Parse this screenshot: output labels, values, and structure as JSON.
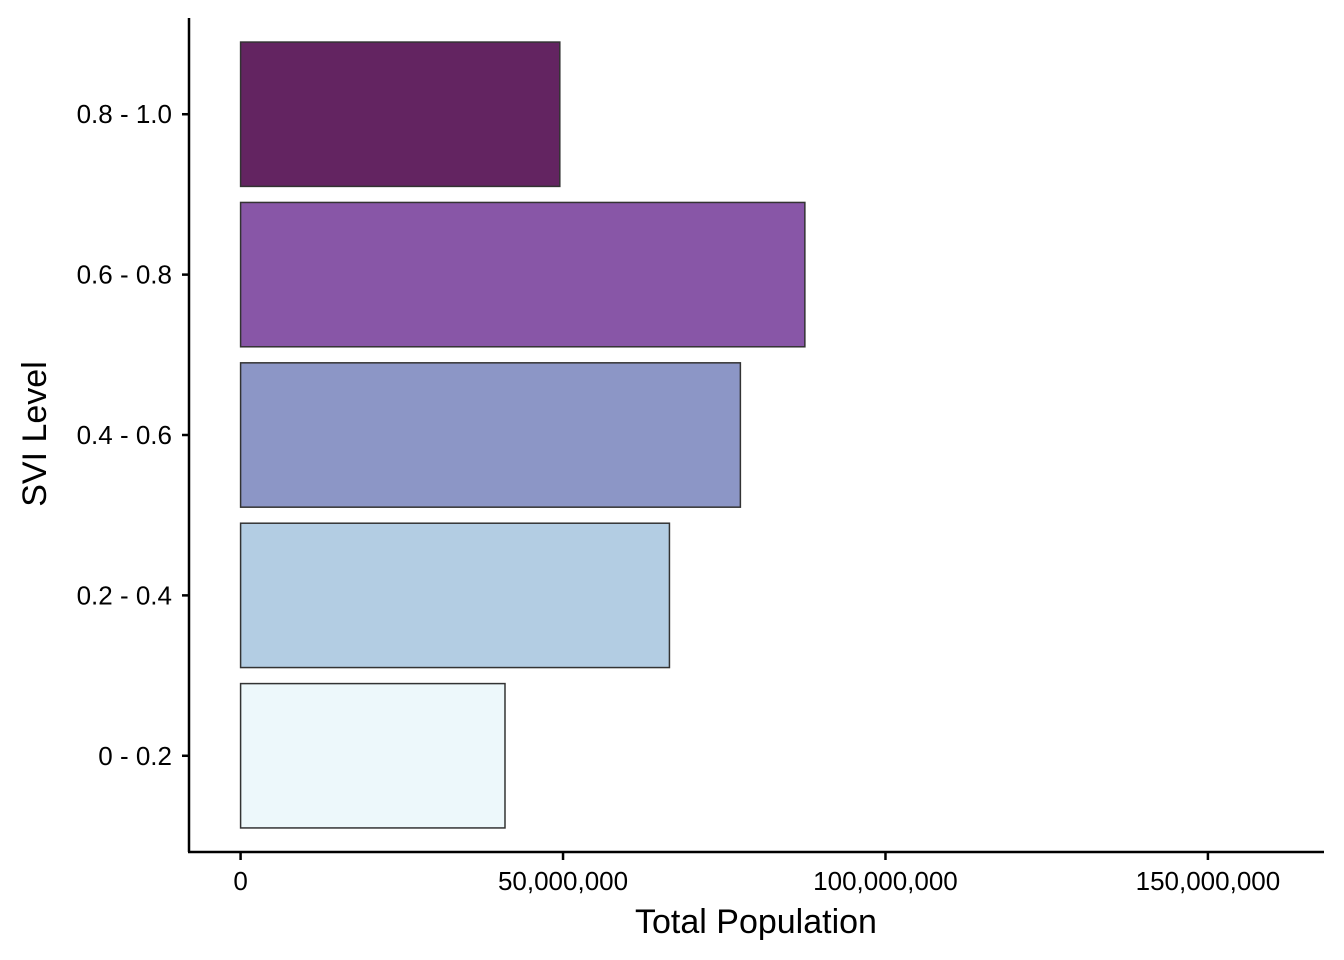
{
  "chart_data": {
    "type": "bar",
    "orientation": "horizontal",
    "title": "",
    "xlabel": "Total Population",
    "ylabel": "SVI Level",
    "categories": [
      "0 - 0.2",
      "0.2 - 0.4",
      "0.4 - 0.6",
      "0.6 - 0.8",
      "0.8 - 1.0"
    ],
    "values": [
      41000000,
      66500000,
      77500000,
      87500000,
      49500000
    ],
    "colors": [
      "#EDF8FB",
      "#B3CDE3",
      "#8C96C6",
      "#8856A7",
      "#632461"
    ],
    "xlim": [
      -8000000,
      168000000
    ],
    "xticks": [
      0,
      50000000,
      100000000,
      150000000
    ],
    "xtick_labels": [
      "0",
      "50,000,000",
      "100,000,000",
      "150,000,000"
    ],
    "grid": false,
    "legend": "none"
  }
}
